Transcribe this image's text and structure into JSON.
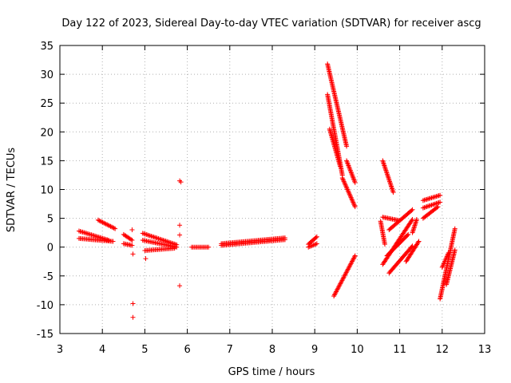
{
  "chart_data": {
    "type": "scatter",
    "title": "Day 122 of 2023, Sidereal Day-to-day VTEC variation (SDTVAR) for receiver ascg",
    "xlabel": "GPS time / hours",
    "ylabel": "SDTVAR / TECUs",
    "xlim": [
      3,
      13
    ],
    "ylim": [
      -15,
      35
    ],
    "xticks": [
      3,
      4,
      5,
      6,
      7,
      8,
      9,
      10,
      11,
      12,
      13
    ],
    "yticks": [
      -15,
      -10,
      -5,
      0,
      5,
      10,
      15,
      20,
      25,
      30,
      35
    ],
    "grid": true,
    "marker": "+",
    "color": "#ff0000",
    "tracks": [
      {
        "x_start": 3.45,
        "x_end": 4.25,
        "y_start": 1.5,
        "y_end": 1.0
      },
      {
        "x_start": 3.45,
        "x_end": 4.15,
        "y_start": 2.8,
        "y_end": 1.2
      },
      {
        "x_start": 3.9,
        "x_end": 4.3,
        "y_start": 4.7,
        "y_end": 3.2
      },
      {
        "x_start": 4.5,
        "x_end": 4.7,
        "y_start": 2.2,
        "y_end": 1.2
      },
      {
        "x_start": 4.5,
        "x_end": 4.7,
        "y_start": 0.6,
        "y_end": 0.3
      },
      {
        "x_start": 4.95,
        "x_end": 5.75,
        "y_start": 2.4,
        "y_end": 0.4
      },
      {
        "x_start": 4.95,
        "x_end": 5.75,
        "y_start": 1.2,
        "y_end": 0.0
      },
      {
        "x_start": 5.0,
        "x_end": 5.7,
        "y_start": -0.6,
        "y_end": -0.2
      },
      {
        "x_start": 6.1,
        "x_end": 6.5,
        "y_start": 0.0,
        "y_end": 0.0
      },
      {
        "x_start": 6.8,
        "x_end": 8.3,
        "y_start": 0.3,
        "y_end": 1.3
      },
      {
        "x_start": 6.8,
        "x_end": 8.3,
        "y_start": 0.6,
        "y_end": 1.6
      },
      {
        "x_start": 8.85,
        "x_end": 9.05,
        "y_start": 0.5,
        "y_end": 1.8
      },
      {
        "x_start": 8.85,
        "x_end": 9.05,
        "y_start": 0.0,
        "y_end": 0.6
      },
      {
        "x_start": 9.3,
        "x_end": 9.75,
        "y_start": 31.8,
        "y_end": 17.5
      },
      {
        "x_start": 9.75,
        "x_end": 9.95,
        "y_start": 15.0,
        "y_end": 11.2
      },
      {
        "x_start": 9.3,
        "x_end": 9.65,
        "y_start": 26.5,
        "y_end": 12.5
      },
      {
        "x_start": 9.65,
        "x_end": 9.95,
        "y_start": 12.0,
        "y_end": 7.0
      },
      {
        "x_start": 9.35,
        "x_end": 9.6,
        "y_start": 20.5,
        "y_end": 14.0
      },
      {
        "x_start": 9.45,
        "x_end": 9.95,
        "y_start": -8.5,
        "y_end": -1.5
      },
      {
        "x_start": 10.6,
        "x_end": 10.85,
        "y_start": 15.0,
        "y_end": 9.5
      },
      {
        "x_start": 10.55,
        "x_end": 10.65,
        "y_start": 4.5,
        "y_end": 0.5
      },
      {
        "x_start": 10.6,
        "x_end": 11.0,
        "y_start": 5.2,
        "y_end": 4.6
      },
      {
        "x_start": 10.75,
        "x_end": 11.3,
        "y_start": 3.0,
        "y_end": 6.5
      },
      {
        "x_start": 10.6,
        "x_end": 11.3,
        "y_start": -3.0,
        "y_end": 4.8
      },
      {
        "x_start": 10.7,
        "x_end": 11.2,
        "y_start": -1.5,
        "y_end": 2.2
      },
      {
        "x_start": 10.75,
        "x_end": 11.3,
        "y_start": -4.5,
        "y_end": 0.2
      },
      {
        "x_start": 11.15,
        "x_end": 11.45,
        "y_start": -2.5,
        "y_end": 1.0
      },
      {
        "x_start": 11.3,
        "x_end": 11.4,
        "y_start": 2.5,
        "y_end": 4.8
      },
      {
        "x_start": 11.55,
        "x_end": 11.95,
        "y_start": 8.1,
        "y_end": 9.0
      },
      {
        "x_start": 11.55,
        "x_end": 11.95,
        "y_start": 6.8,
        "y_end": 7.8
      },
      {
        "x_start": 11.55,
        "x_end": 11.9,
        "y_start": 5.0,
        "y_end": 7.0
      },
      {
        "x_start": 11.95,
        "x_end": 12.3,
        "y_start": -9.0,
        "y_end": 3.2
      },
      {
        "x_start": 12.1,
        "x_end": 12.3,
        "y_start": -6.5,
        "y_end": -0.5
      },
      {
        "x_start": 12.0,
        "x_end": 12.15,
        "y_start": -3.5,
        "y_end": -1.0
      }
    ],
    "isolated_points": [
      {
        "x": 4.7,
        "y": 3.0
      },
      {
        "x": 4.72,
        "y": -1.2
      },
      {
        "x": 4.72,
        "y": -9.8
      },
      {
        "x": 4.72,
        "y": -12.2
      },
      {
        "x": 5.02,
        "y": -2.0
      },
      {
        "x": 5.82,
        "y": 11.5
      },
      {
        "x": 5.85,
        "y": 11.3
      },
      {
        "x": 5.82,
        "y": 3.8
      },
      {
        "x": 5.82,
        "y": 2.1
      },
      {
        "x": 5.82,
        "y": -6.7
      }
    ]
  }
}
